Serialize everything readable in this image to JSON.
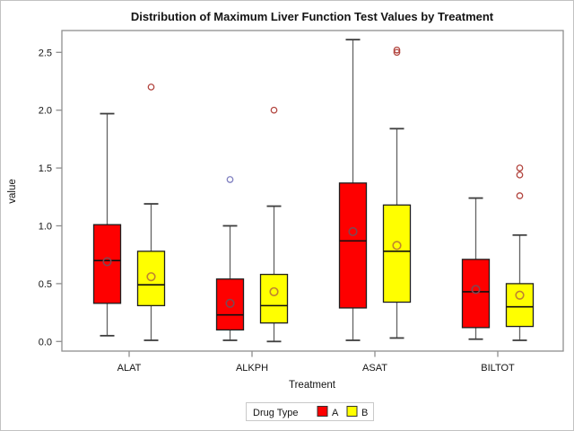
{
  "title": "Distribution of Maximum Liver Function Test Values by Treatment",
  "y_axis": {
    "label": "value",
    "tick_values": [
      0.0,
      0.5,
      1.0,
      1.5,
      2.0,
      2.5
    ],
    "tick_labels": [
      "0.0",
      "0.5",
      "1.0",
      "1.5",
      "2.0",
      "2.5"
    ]
  },
  "x_axis": {
    "label": "Treatment",
    "categories": [
      "ALAT",
      "ALKPH",
      "ASAT",
      "BILTOT"
    ]
  },
  "legend": {
    "title": "Drug Type",
    "entries": [
      {
        "label": "A",
        "color": "#fe0000"
      },
      {
        "label": "B",
        "color": "#ffff00"
      }
    ]
  },
  "colors": {
    "box_border": "#1f1f1f",
    "whisker_line": "#636363",
    "whisker_cap": "#3f3f3f",
    "median_line": "#101010",
    "plot_frame": "#8f8f8f",
    "figure_border": "#c2c2c2",
    "legend_border": "#c9c9c9",
    "outlier_default": "#b2453f",
    "outlier_blue": "#8080c0"
  },
  "chart_data": {
    "type": "box",
    "title": "Distribution of Maximum Liver Function Test Values by Treatment",
    "xlabel": "Treatment",
    "ylabel": "value",
    "ylim": [
      -0.08,
      2.69
    ],
    "grid": false,
    "legend_position": "bottom-center",
    "categories": [
      "ALAT",
      "ALKPH",
      "ASAT",
      "BILTOT"
    ],
    "series": [
      {
        "name": "A",
        "fill": "#fe0000",
        "mean_stroke": "#7e4752",
        "boxes": [
          {
            "category": "ALAT",
            "whisker_low": 0.05,
            "q1": 0.33,
            "median": 0.7,
            "q3": 1.01,
            "whisker_high": 1.97,
            "mean": 0.69,
            "outliers": []
          },
          {
            "category": "ALKPH",
            "whisker_low": 0.01,
            "q1": 0.1,
            "median": 0.23,
            "q3": 0.54,
            "whisker_high": 1.0,
            "mean": 0.33,
            "outliers": [
              {
                "value": 1.4,
                "color": "#8080c0"
              }
            ]
          },
          {
            "category": "ASAT",
            "whisker_low": 0.01,
            "q1": 0.29,
            "median": 0.87,
            "q3": 1.37,
            "whisker_high": 2.61,
            "mean": 0.95,
            "outliers": []
          },
          {
            "category": "BILTOT",
            "whisker_low": 0.02,
            "q1": 0.12,
            "median": 0.43,
            "q3": 0.71,
            "whisker_high": 1.24,
            "mean": 0.45,
            "outliers": []
          }
        ]
      },
      {
        "name": "B",
        "fill": "#ffff00",
        "mean_stroke": "#bf842f",
        "boxes": [
          {
            "category": "ALAT",
            "whisker_low": 0.01,
            "q1": 0.31,
            "median": 0.49,
            "q3": 0.78,
            "whisker_high": 1.19,
            "mean": 0.56,
            "outliers": [
              {
                "value": 2.2,
                "color": "#b2453f"
              }
            ]
          },
          {
            "category": "ALKPH",
            "whisker_low": 0.0,
            "q1": 0.16,
            "median": 0.31,
            "q3": 0.58,
            "whisker_high": 1.17,
            "mean": 0.43,
            "outliers": [
              {
                "value": 2.0,
                "color": "#b2453f"
              }
            ]
          },
          {
            "category": "ASAT",
            "whisker_low": 0.03,
            "q1": 0.34,
            "median": 0.78,
            "q3": 1.18,
            "whisker_high": 1.84,
            "mean": 0.83,
            "outliers": [
              {
                "value": 2.5,
                "color": "#b2453f"
              },
              {
                "value": 2.52,
                "color": "#b2453f"
              }
            ]
          },
          {
            "category": "BILTOT",
            "whisker_low": 0.01,
            "q1": 0.13,
            "median": 0.3,
            "q3": 0.5,
            "whisker_high": 0.92,
            "mean": 0.4,
            "outliers": [
              {
                "value": 1.26,
                "color": "#b2453f"
              },
              {
                "value": 1.44,
                "color": "#b2453f"
              },
              {
                "value": 1.5,
                "color": "#b2453f"
              }
            ]
          }
        ]
      }
    ]
  }
}
